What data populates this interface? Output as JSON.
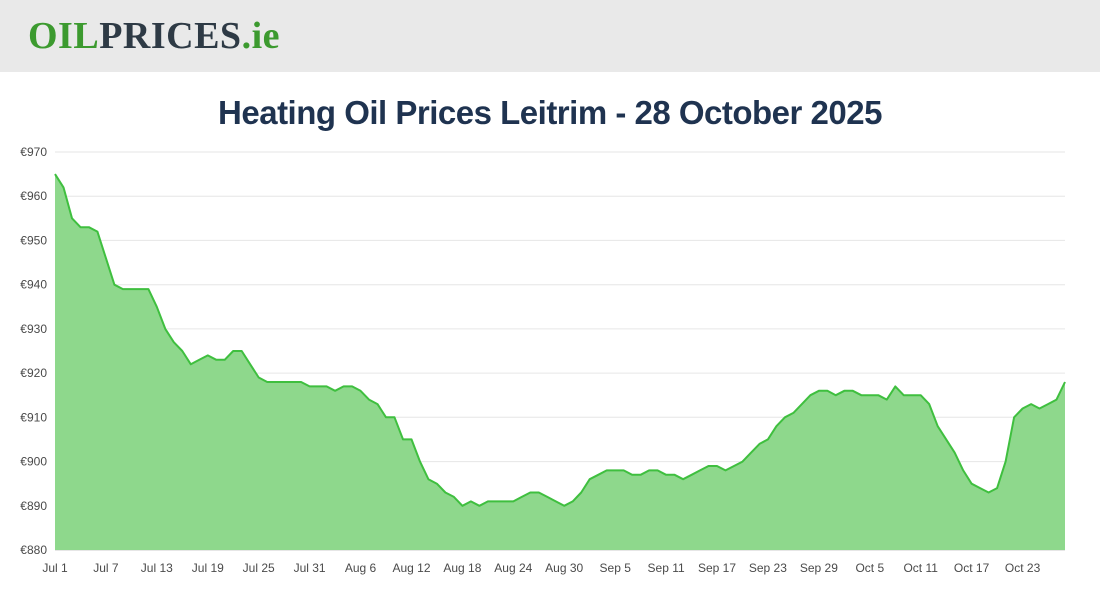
{
  "header": {
    "logo": {
      "part1": "OIL",
      "part2": "PRICES",
      "part3": ".ie"
    }
  },
  "title": "Heating Oil Prices Leitrim - 28 October 2025",
  "colors": {
    "header_bg": "#e9e9e9",
    "logo_green": "#3c9a2f",
    "logo_dark": "#2e3a45",
    "title_navy": "#1f3350"
  },
  "chart_data": {
    "type": "area",
    "title": "Heating Oil Prices Leitrim - 28 October 2025",
    "currency": "€",
    "ylabel": "",
    "xlabel": "",
    "ylim": [
      880,
      970
    ],
    "y_ticks": [
      880,
      890,
      900,
      910,
      920,
      930,
      940,
      950,
      960,
      970
    ],
    "grid": "horizontal",
    "legend": "none",
    "fill_color": "#8ed88c",
    "line_color": "#3fbf3f",
    "x_ticks": [
      {
        "index": 0,
        "label": "Jul 1"
      },
      {
        "index": 6,
        "label": "Jul 7"
      },
      {
        "index": 12,
        "label": "Jul 13"
      },
      {
        "index": 18,
        "label": "Jul 19"
      },
      {
        "index": 24,
        "label": "Jul 25"
      },
      {
        "index": 30,
        "label": "Jul 31"
      },
      {
        "index": 36,
        "label": "Aug 6"
      },
      {
        "index": 42,
        "label": "Aug 12"
      },
      {
        "index": 48,
        "label": "Aug 18"
      },
      {
        "index": 54,
        "label": "Aug 24"
      },
      {
        "index": 60,
        "label": "Aug 30"
      },
      {
        "index": 66,
        "label": "Sep 5"
      },
      {
        "index": 72,
        "label": "Sep 11"
      },
      {
        "index": 78,
        "label": "Sep 17"
      },
      {
        "index": 84,
        "label": "Sep 23"
      },
      {
        "index": 90,
        "label": "Sep 29"
      },
      {
        "index": 96,
        "label": "Oct 5"
      },
      {
        "index": 102,
        "label": "Oct 11"
      },
      {
        "index": 108,
        "label": "Oct 17"
      },
      {
        "index": 114,
        "label": "Oct 23"
      }
    ],
    "values": [
      965,
      962,
      955,
      953,
      953,
      952,
      946,
      940,
      939,
      939,
      939,
      939,
      935,
      930,
      927,
      925,
      922,
      923,
      924,
      923,
      923,
      925,
      925,
      922,
      919,
      918,
      918,
      918,
      918,
      918,
      917,
      917,
      917,
      916,
      917,
      917,
      916,
      914,
      913,
      910,
      910,
      905,
      905,
      900,
      896,
      895,
      893,
      892,
      890,
      891,
      890,
      891,
      891,
      891,
      891,
      892,
      893,
      893,
      892,
      891,
      890,
      891,
      893,
      896,
      897,
      898,
      898,
      898,
      897,
      897,
      898,
      898,
      897,
      897,
      896,
      897,
      898,
      899,
      899,
      898,
      899,
      900,
      902,
      904,
      905,
      908,
      910,
      911,
      913,
      915,
      916,
      916,
      915,
      916,
      916,
      915,
      915,
      915,
      914,
      917,
      915,
      915,
      915,
      913,
      908,
      905,
      902,
      898,
      895,
      894,
      893,
      894,
      900,
      910,
      912,
      913,
      912,
      913,
      914,
      918
    ]
  }
}
